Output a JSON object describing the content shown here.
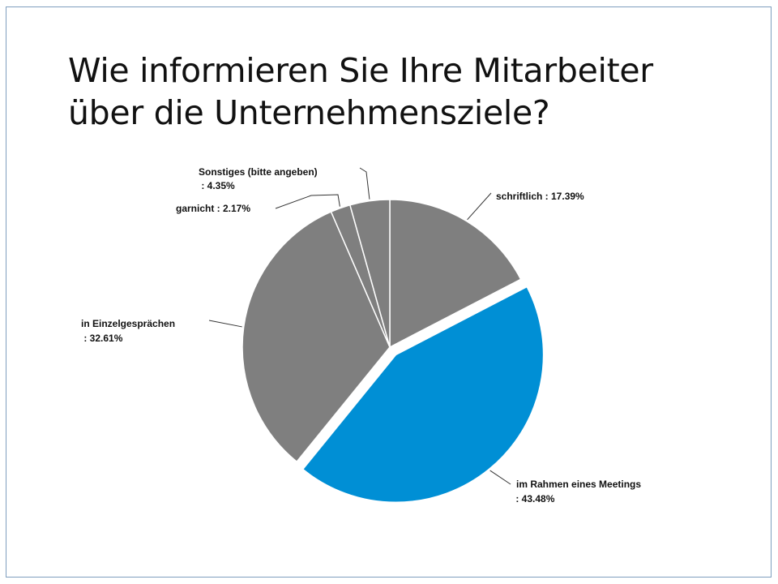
{
  "slide": {
    "title_line1": "Wie informieren Sie Ihre Mitarbeiter",
    "title_line2": "über die Unternehmensziele?"
  },
  "chart_data": {
    "type": "pie",
    "title": "",
    "start_angle_deg": 0,
    "direction": "clockwise",
    "slices": [
      {
        "label": "schriftlich",
        "value_label": "17.39%",
        "value": 17.39,
        "color": "#7f7f7f",
        "exploded": false
      },
      {
        "label": "im Rahmen eines Meetings",
        "value_label": "43.48%",
        "value": 43.48,
        "color": "#008fd5",
        "exploded": true
      },
      {
        "label": "in Einzelgesprächen",
        "value_label": "32.61%",
        "value": 32.61,
        "color": "#7f7f7f",
        "exploded": false
      },
      {
        "label": "garnicht",
        "value_label": "2.17%",
        "value": 2.17,
        "color": "#7f7f7f",
        "exploded": false
      },
      {
        "label": "Sonstiges (bitte angeben)",
        "value_label": "4.35%",
        "value": 4.35,
        "color": "#7f7f7f",
        "exploded": false
      }
    ],
    "labels_text": {
      "schriftlich": "schriftlich : 17.39%",
      "meeting_line1": "im Rahmen eines Meetings",
      "meeting_line2": " : 43.48%",
      "einzel_line1": "in Einzelgesprächen",
      "einzel_line2": " : 32.61%",
      "garnicht": "garnicht : 2.17%",
      "sonstiges_line1": "Sonstiges (bitte angeben)",
      "sonstiges_line2": " : 4.35%"
    }
  }
}
